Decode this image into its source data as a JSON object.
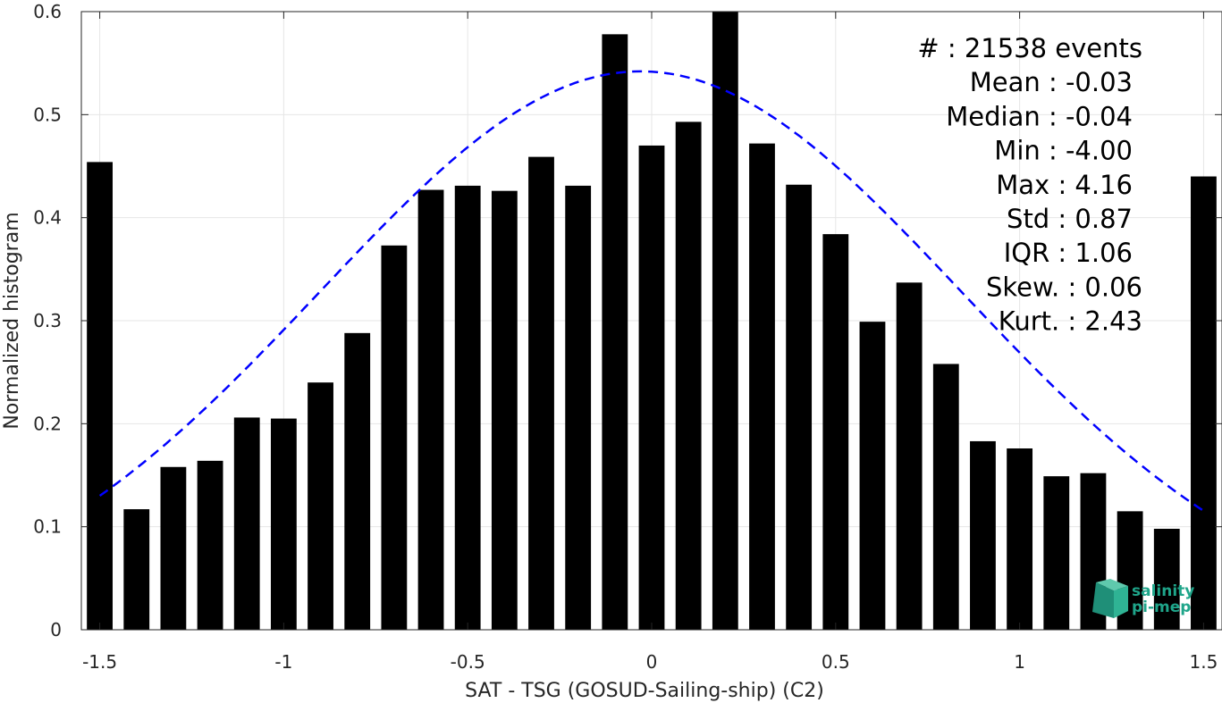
{
  "chart_data": {
    "type": "bar",
    "xlabel": "SAT - TSG (GOSUD-Sailing-ship) (C2)",
    "ylabel": "Normalized histogram",
    "xlim": [
      -1.55,
      1.55
    ],
    "ylim": [
      0,
      0.6
    ],
    "xticks": [
      -1.5,
      -1,
      -0.5,
      0,
      0.5,
      1,
      1.5
    ],
    "xtick_labels": [
      "-1.5",
      "-1",
      "-0.5",
      "0",
      "0.5",
      "1",
      "1.5"
    ],
    "yticks": [
      0,
      0.1,
      0.2,
      0.3,
      0.4,
      0.5,
      0.6
    ],
    "ytick_labels": [
      "0",
      "0.1",
      "0.2",
      "0.3",
      "0.4",
      "0.5",
      "0.6"
    ],
    "grid": true,
    "bar_color": "#000000",
    "bar_width": 0.07,
    "x": [
      -1.5,
      -1.4,
      -1.3,
      -1.2,
      -1.1,
      -1.0,
      -0.9,
      -0.8,
      -0.7,
      -0.6,
      -0.5,
      -0.4,
      -0.3,
      -0.2,
      -0.1,
      0.0,
      0.1,
      0.2,
      0.3,
      0.4,
      0.5,
      0.6,
      0.7,
      0.8,
      0.9,
      1.0,
      1.1,
      1.2,
      1.3,
      1.4,
      1.5
    ],
    "values": [
      0.454,
      0.117,
      0.158,
      0.164,
      0.206,
      0.205,
      0.24,
      0.288,
      0.373,
      0.427,
      0.431,
      0.426,
      0.459,
      0.431,
      0.578,
      0.47,
      0.493,
      0.6,
      0.472,
      0.432,
      0.384,
      0.299,
      0.337,
      0.258,
      0.183,
      0.176,
      0.149,
      0.152,
      0.115,
      0.098,
      0.44
    ],
    "fit_curve": {
      "type": "normal",
      "mean": -0.03,
      "std": 0.87,
      "peak": 0.542,
      "x_range": [
        -1.5,
        1.5
      ],
      "color": "#0000ff",
      "style": "dashed"
    },
    "annotations": [
      "#  : 21538 events",
      "Mean : -0.03",
      "Median : -0.04",
      "Min : -4.00",
      "Max : 4.16",
      "Std : 0.87",
      "IQR : 1.06",
      "Skew. : 0.06",
      "Kurt. : 2.43"
    ]
  },
  "logo": {
    "line1": "salinity",
    "line2": "pi-mep",
    "color": "#1fa58a"
  }
}
